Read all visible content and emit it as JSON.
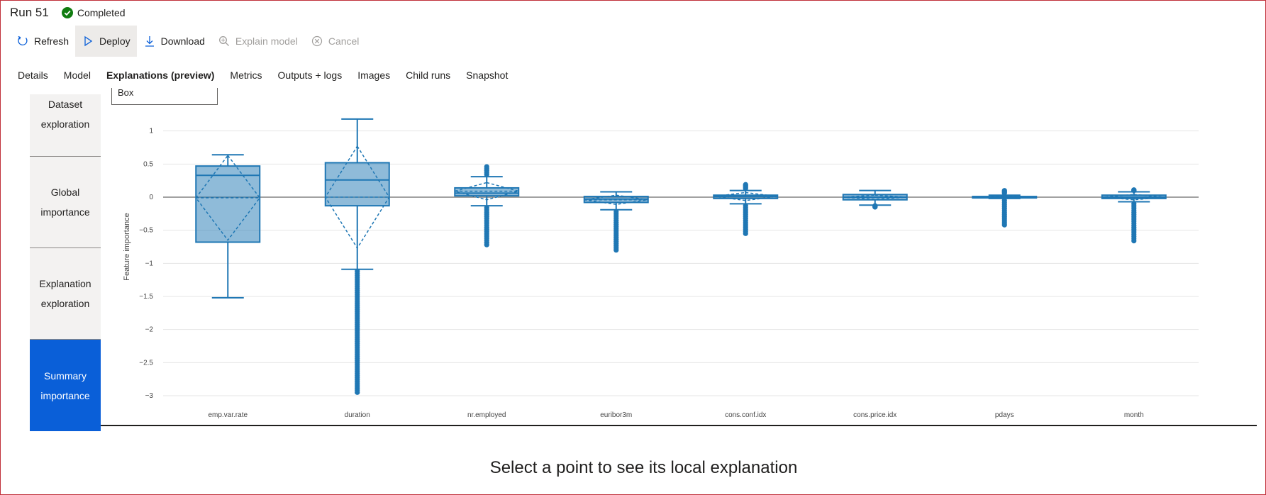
{
  "run": {
    "title": "Run 51",
    "status": "Completed",
    "status_color": "#107c10"
  },
  "toolbar": {
    "refresh": "Refresh",
    "deploy": "Deploy",
    "download": "Download",
    "explain_model": "Explain model",
    "cancel": "Cancel"
  },
  "tabs": [
    {
      "label": "Details"
    },
    {
      "label": "Model"
    },
    {
      "label": "Explanations (preview)",
      "selected": true
    },
    {
      "label": "Metrics"
    },
    {
      "label": "Outputs + logs"
    },
    {
      "label": "Images"
    },
    {
      "label": "Child runs"
    },
    {
      "label": "Snapshot"
    }
  ],
  "sidenav": [
    {
      "label": "Dataset exploration"
    },
    {
      "label": "Global importance"
    },
    {
      "label": "Explanation exploration"
    },
    {
      "label": "Summary importance",
      "active": true
    }
  ],
  "plot_type_select": {
    "value": "Box"
  },
  "chart_data": {
    "type": "box",
    "ylabel": "Feature importance",
    "ylim": [
      -3,
      1.2
    ],
    "yticks": [
      "1",
      "0.5",
      "0",
      "−0.5",
      "−1",
      "−1.5",
      "−2",
      "−2.5",
      "−3"
    ],
    "ytick_values": [
      1,
      0.5,
      0,
      -0.5,
      -1,
      -1.5,
      -2,
      -2.5,
      -3
    ],
    "grid": true,
    "color": "#1f77b4",
    "categories": [
      "emp.var.rate",
      "duration",
      "nr.employed",
      "euribor3m",
      "cons.conf.idx",
      "cons.price.idx",
      "pdays",
      "month"
    ],
    "boxes": [
      {
        "q1": -0.68,
        "median": 0.33,
        "q3": 0.47,
        "lower": -1.52,
        "upper": 0.64,
        "mean": -0.01,
        "sd": 0.64,
        "outliers_low": [],
        "outliers_high": []
      },
      {
        "q1": -0.13,
        "median": 0.26,
        "q3": 0.52,
        "lower": -1.09,
        "upper": 1.18,
        "mean": 0.0,
        "sd": 0.77,
        "outliers_low": [
          -1.15,
          -1.4,
          -1.7,
          -2.0,
          -2.3,
          -2.6,
          -2.8,
          -2.95
        ],
        "outliers_high": []
      },
      {
        "q1": 0.02,
        "median": 0.06,
        "q3": 0.14,
        "lower": -0.13,
        "upper": 0.31,
        "mean": 0.09,
        "sd": 0.13,
        "outliers_low": [
          -0.2,
          -0.35,
          -0.5,
          -0.62,
          -0.72
        ],
        "outliers_high": [
          0.37,
          0.42,
          0.46
        ]
      },
      {
        "q1": -0.08,
        "median": -0.03,
        "q3": 0.01,
        "lower": -0.19,
        "upper": 0.08,
        "mean": -0.04,
        "sd": 0.07,
        "outliers_low": [
          -0.25,
          -0.4,
          -0.55,
          -0.68,
          -0.8
        ],
        "outliers_high": []
      },
      {
        "q1": -0.02,
        "median": 0.01,
        "q3": 0.03,
        "lower": -0.1,
        "upper": 0.1,
        "mean": 0.01,
        "sd": 0.06,
        "outliers_low": [
          -0.2,
          -0.32,
          -0.44,
          -0.55
        ],
        "outliers_high": [
          0.13,
          0.17,
          0.19
        ]
      },
      {
        "q1": -0.04,
        "median": 0.0,
        "q3": 0.04,
        "lower": -0.12,
        "upper": 0.1,
        "mean": 0.0,
        "sd": 0.03,
        "outliers_low": [
          -0.13
        ],
        "outliers_high": []
      },
      {
        "q1": -0.01,
        "median": 0.0,
        "q3": 0.01,
        "lower": -0.02,
        "upper": 0.03,
        "mean": 0.0,
        "sd": 0.02,
        "outliers_low": [
          -0.12,
          -0.22,
          -0.32,
          -0.42
        ],
        "outliers_high": [
          0.06,
          0.1
        ]
      },
      {
        "q1": -0.02,
        "median": 0.0,
        "q3": 0.03,
        "lower": -0.07,
        "upper": 0.08,
        "mean": 0.0,
        "sd": 0.04,
        "outliers_low": [
          -0.12,
          -0.25,
          -0.38,
          -0.5,
          -0.6,
          -0.66
        ],
        "outliers_high": [
          0.1
        ]
      }
    ]
  },
  "footer_message": "Select a point to see its local explanation"
}
